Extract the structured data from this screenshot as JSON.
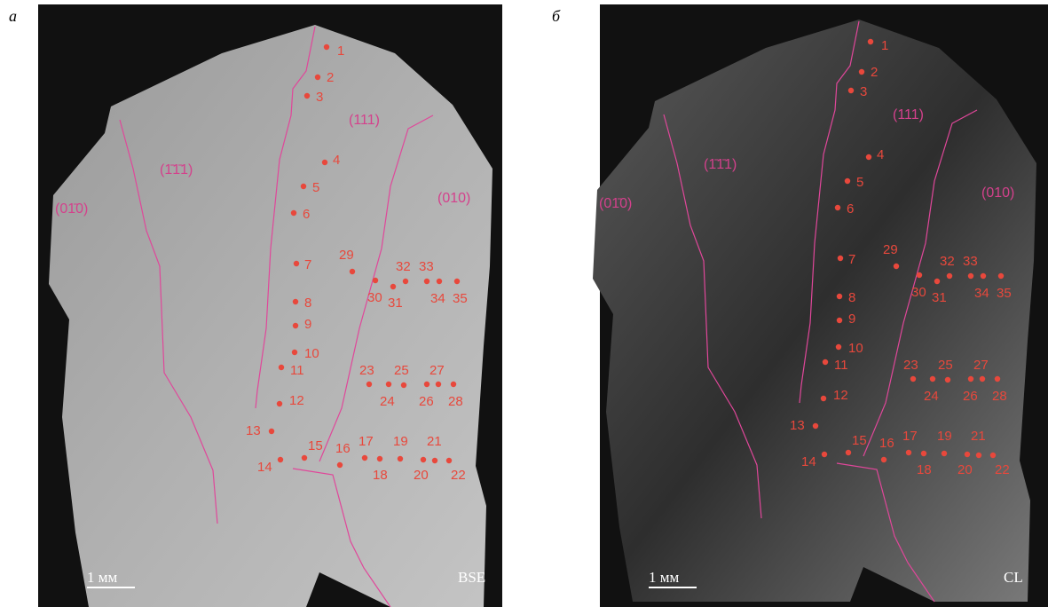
{
  "panels": [
    {
      "letter": "а",
      "mode": "BSE",
      "scale_bar": "1 мм",
      "faces": [
        "(01̄0)",
        "(1̄1̄1)",
        "(111)",
        "(010)"
      ],
      "points": [
        "1",
        "2",
        "3",
        "4",
        "5",
        "6",
        "7",
        "8",
        "9",
        "10",
        "11",
        "12",
        "13",
        "14",
        "15",
        "16",
        "17",
        "18",
        "19",
        "20",
        "21",
        "22",
        "23",
        "24",
        "25",
        "26",
        "27",
        "28",
        "29",
        "30",
        "31",
        "32",
        "33",
        "34",
        "35"
      ]
    },
    {
      "letter": "б",
      "mode": "CL",
      "scale_bar": "1 мм",
      "faces": [
        "(01̄0)",
        "(1̄1̄1)",
        "(111)",
        "(010)"
      ],
      "points": [
        "1",
        "2",
        "3",
        "4",
        "5",
        "6",
        "7",
        "8",
        "9",
        "10",
        "11",
        "12",
        "13",
        "14",
        "15",
        "16",
        "17",
        "18",
        "19",
        "20",
        "21",
        "22",
        "23",
        "24",
        "25",
        "26",
        "27",
        "28",
        "29",
        "30",
        "31",
        "32",
        "33",
        "34",
        "35"
      ]
    }
  ]
}
